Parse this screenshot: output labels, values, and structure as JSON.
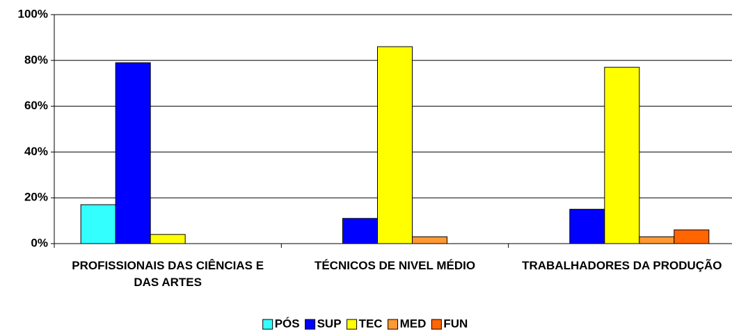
{
  "chart_data": {
    "type": "bar",
    "categories": [
      "PROFISSIONAIS DAS CIÊNCIAS E DAS ARTES",
      "TÉCNICOS DE NIVEL MÉDIO",
      "TRABALHADORES DA PRODUÇÃO"
    ],
    "series": [
      {
        "name": "PÓS",
        "color": "#33ffff",
        "values": [
          17,
          0,
          0
        ]
      },
      {
        "name": "SUP",
        "color": "#0000ff",
        "values": [
          79,
          11,
          15
        ]
      },
      {
        "name": "TEC",
        "color": "#ffff00",
        "values": [
          4,
          86,
          77
        ]
      },
      {
        "name": "MED",
        "color": "#ff9933",
        "values": [
          0,
          3,
          3
        ]
      },
      {
        "name": "FUN",
        "color": "#ff6600",
        "values": [
          0,
          0,
          6
        ]
      }
    ],
    "ylim": [
      0,
      100
    ],
    "yticks": [
      {
        "value": 0,
        "label": "0%"
      },
      {
        "value": 20,
        "label": "20%"
      },
      {
        "value": 40,
        "label": "40%"
      },
      {
        "value": 60,
        "label": "60%"
      },
      {
        "value": 80,
        "label": "80%"
      },
      {
        "value": 100,
        "label": "100%"
      }
    ],
    "grid": true,
    "legend": "bottom"
  }
}
